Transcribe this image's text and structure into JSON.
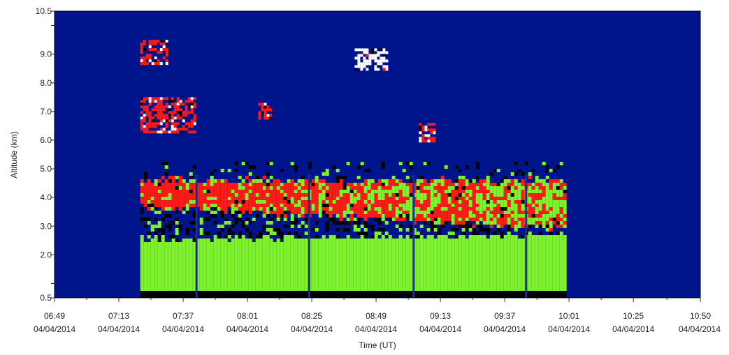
{
  "colors": {
    "background": "#00148c",
    "plot_frame": "#000000",
    "classes": {
      "a": "#7ef22b",
      "b": "#ff1a14",
      "c": "#000000",
      "d": "#ffffff",
      "e": "#1f2f8a"
    }
  },
  "chart_data": {
    "type": "heatmap",
    "xlabel": "Time (UT)",
    "ylabel": "Altitude (km)",
    "xlim": [
      "06:49",
      "10:50"
    ],
    "ylim": [
      0.5,
      10.5
    ],
    "grid": false,
    "legend": "none",
    "x_ticks": [
      {
        "time": "06:49",
        "date": "04/04/2014"
      },
      {
        "time": "07:13",
        "date": "04/04/2014"
      },
      {
        "time": "07:37",
        "date": "04/04/2014"
      },
      {
        "time": "08:01",
        "date": "04/04/2014"
      },
      {
        "time": "08:25",
        "date": "04/04/2014"
      },
      {
        "time": "08:49",
        "date": "04/04/2014"
      },
      {
        "time": "09:13",
        "date": "04/04/2014"
      },
      {
        "time": "09:37",
        "date": "04/04/2014"
      },
      {
        "time": "10:01",
        "date": "04/04/2014"
      },
      {
        "time": "10:25",
        "date": "04/04/2014"
      },
      {
        "time": "10:50",
        "date": "04/04/2014"
      }
    ],
    "y_ticks": [
      "0.5",
      "",
      "2.0",
      "3.0",
      "4.0",
      "5.0",
      "6.0",
      "7.0",
      "8.0",
      "9.0",
      "",
      "10.5"
    ],
    "y_tick_values": [
      0.5,
      1.0,
      2.0,
      3.0,
      4.0,
      5.0,
      6.0,
      7.0,
      8.0,
      9.0,
      10.0,
      10.5
    ],
    "measurement_window": [
      "07:21",
      "10:00"
    ],
    "profile_gaps": [
      "07:42",
      "08:24",
      "09:03",
      "09:45"
    ],
    "layers": [
      {
        "class": "c",
        "t_start": "07:21",
        "t_end": "10:00",
        "alt_bottom": 0.5,
        "alt_top": 0.8
      },
      {
        "class": "a",
        "t_start": "07:21",
        "t_end": "10:00",
        "alt_bottom": 0.8,
        "alt_top_start": 2.5,
        "alt_top_end": 2.7
      },
      {
        "class": "b",
        "t_start": "07:21",
        "t_end": "10:00",
        "alt_bottom_start": 3.7,
        "alt_bottom_end": 2.9,
        "alt_top": 4.6
      },
      {
        "class": "b",
        "t_start": "07:21",
        "t_end": "07:41",
        "alt_bottom": 6.3,
        "alt_top": 7.5
      },
      {
        "class": "b",
        "t_start": "07:21",
        "t_end": "07:31",
        "alt_bottom": 8.7,
        "alt_top": 9.5
      },
      {
        "class": "d",
        "t_start": "08:41",
        "t_end": "08:53",
        "alt_bottom": 8.5,
        "alt_top": 9.2
      },
      {
        "class": "b",
        "t_start": "08:05",
        "t_end": "08:10",
        "alt_bottom": 6.8,
        "alt_top": 7.3
      },
      {
        "class": "b",
        "t_start": "09:05",
        "t_end": "09:11",
        "alt_bottom": 6.0,
        "alt_top": 6.6
      }
    ]
  }
}
